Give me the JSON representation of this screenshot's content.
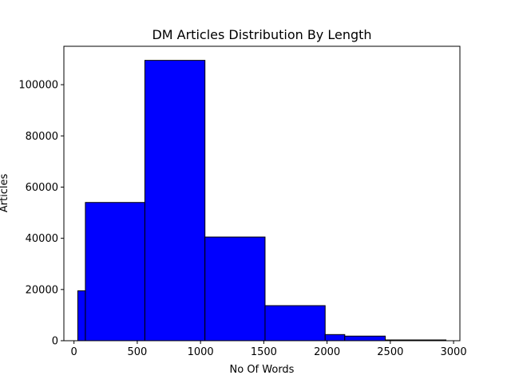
{
  "chart_data": {
    "type": "bar",
    "title": "DM Articles Distribution By Length",
    "xlabel": "No Of Words",
    "ylabel": "Articles",
    "xlim": [
      -80,
      3050
    ],
    "ylim": [
      0,
      115000
    ],
    "xticks": [
      0,
      500,
      1000,
      1500,
      2000,
      2500,
      3000
    ],
    "yticks": [
      0,
      20000,
      40000,
      60000,
      80000,
      100000
    ],
    "grid": false,
    "bar_color": "#0000ff",
    "edge_color": "#000000",
    "bins": [
      {
        "x0": 30,
        "x1": 90,
        "value": 19500
      },
      {
        "x0": 90,
        "x1": 560,
        "value": 54000
      },
      {
        "x0": 560,
        "x1": 1035,
        "value": 109500
      },
      {
        "x0": 1035,
        "x1": 1510,
        "value": 40500
      },
      {
        "x0": 1510,
        "x1": 1985,
        "value": 13700
      },
      {
        "x0": 1985,
        "x1": 2140,
        "value": 2400
      },
      {
        "x0": 2140,
        "x1": 2460,
        "value": 1800
      },
      {
        "x0": 2460,
        "x1": 2940,
        "value": 300
      }
    ]
  }
}
